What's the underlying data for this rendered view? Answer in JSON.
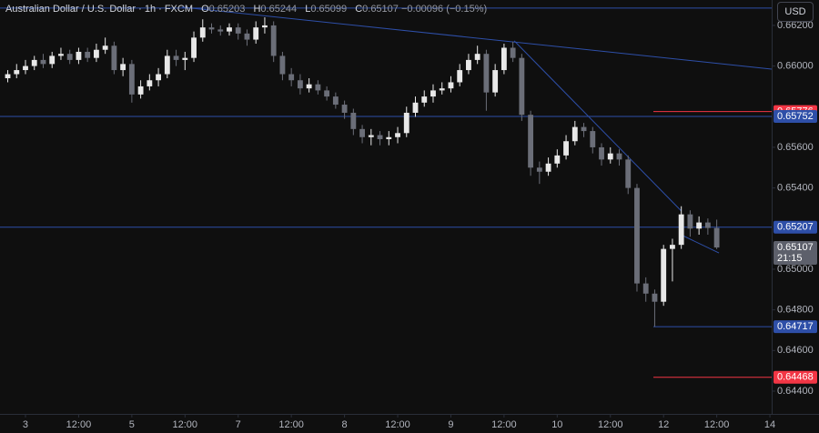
{
  "header": {
    "symbol": "Australian Dollar / U.S. Dollar · 1h · FXCM",
    "open_key": "O",
    "open": "0.65203",
    "high_key": "H",
    "high": "0.65244",
    "low_key": "L",
    "low": "0.65099",
    "close_key": "C",
    "close": "0.65107",
    "change": "−0.00096 (−0.15%)"
  },
  "currency_button": "USD",
  "chart_data": {
    "type": "candlestick",
    "xlim": [
      -5.75,
      168.4
    ],
    "ylim": [
      0.64288,
      0.66325
    ],
    "xticks": [
      {
        "value": 0,
        "label": "3"
      },
      {
        "value": 12,
        "label": "12:00"
      },
      {
        "value": 24,
        "label": "5"
      },
      {
        "value": 36,
        "label": "12:00"
      },
      {
        "value": 48,
        "label": "7"
      },
      {
        "value": 60,
        "label": "12:00"
      },
      {
        "value": 72,
        "label": "8"
      },
      {
        "value": 84,
        "label": "12:00"
      },
      {
        "value": 96,
        "label": "9"
      },
      {
        "value": 108,
        "label": "12:00"
      },
      {
        "value": 120,
        "label": "10"
      },
      {
        "value": 132,
        "label": "12:00"
      },
      {
        "value": 144,
        "label": "12"
      },
      {
        "value": 156,
        "label": "12:00"
      },
      {
        "value": 168,
        "label": "14"
      }
    ],
    "yticks": [
      {
        "value": 0.662,
        "label": "0.66200"
      },
      {
        "value": 0.66,
        "label": "0.66000"
      },
      {
        "value": 0.656,
        "label": "0.65600"
      },
      {
        "value": 0.654,
        "label": "0.65400"
      },
      {
        "value": 0.65,
        "label": "0.65000"
      },
      {
        "value": 0.648,
        "label": "0.64800"
      },
      {
        "value": 0.646,
        "label": "0.64600"
      },
      {
        "value": 0.644,
        "label": "0.64400"
      }
    ],
    "up_color": "#e8e8e8",
    "down_color": "#6b6e78",
    "x": [
      -4,
      -2,
      0,
      2,
      4,
      6,
      8,
      10,
      12,
      14,
      16,
      18,
      20,
      22,
      24,
      26,
      28,
      30,
      32,
      34,
      36,
      38,
      40,
      42,
      44,
      46,
      48,
      50,
      52,
      54,
      56,
      58,
      60,
      62,
      64,
      66,
      68,
      70,
      72,
      74,
      76,
      78,
      80,
      82,
      84,
      86,
      88,
      90,
      92,
      94,
      96,
      98,
      100,
      102,
      104,
      106,
      108,
      110,
      112,
      114,
      116,
      118,
      120,
      122,
      124,
      126,
      128,
      130,
      132,
      134,
      136,
      138,
      140,
      142,
      144,
      146,
      148,
      150,
      152,
      154,
      156
    ],
    "open": [
      0.6594,
      0.6596,
      0.6598,
      0.66,
      0.6603,
      0.6601,
      0.6605,
      0.6606,
      0.6603,
      0.6607,
      0.6604,
      0.6608,
      0.661,
      0.6598,
      0.6601,
      0.6586,
      0.659,
      0.6593,
      0.6596,
      0.6605,
      0.6603,
      0.6604,
      0.6614,
      0.6619,
      0.6618,
      0.6617,
      0.6619,
      0.6616,
      0.6613,
      0.6619,
      0.662,
      0.6605,
      0.6596,
      0.6593,
      0.6589,
      0.6591,
      0.6588,
      0.6585,
      0.6581,
      0.6577,
      0.6569,
      0.6565,
      0.6566,
      0.6564,
      0.6565,
      0.6567,
      0.6577,
      0.6582,
      0.6585,
      0.6588,
      0.6589,
      0.6592,
      0.6598,
      0.6603,
      0.6606,
      0.6587,
      0.6598,
      0.6609,
      0.6604,
      0.6576,
      0.655,
      0.6548,
      0.6552,
      0.6556,
      0.6563,
      0.657,
      0.6568,
      0.656,
      0.6554,
      0.6557,
      0.6554,
      0.654,
      0.6493,
      0.6488,
      0.6484,
      0.651,
      0.6512,
      0.6527,
      0.652,
      0.6523,
      0.65203
    ],
    "high": [
      0.6598,
      0.6601,
      0.6603,
      0.6605,
      0.6606,
      0.6607,
      0.6609,
      0.6608,
      0.6609,
      0.6609,
      0.6611,
      0.6614,
      0.6612,
      0.6604,
      0.6603,
      0.6593,
      0.6596,
      0.6599,
      0.6608,
      0.6608,
      0.6607,
      0.6617,
      0.6623,
      0.6621,
      0.662,
      0.6621,
      0.6621,
      0.6618,
      0.6622,
      0.6624,
      0.6622,
      0.6607,
      0.6599,
      0.6596,
      0.6594,
      0.6593,
      0.659,
      0.6587,
      0.6583,
      0.6579,
      0.6571,
      0.6569,
      0.6568,
      0.6568,
      0.657,
      0.658,
      0.6585,
      0.6588,
      0.6591,
      0.6592,
      0.6595,
      0.6601,
      0.6606,
      0.661,
      0.6608,
      0.6601,
      0.6611,
      0.6612,
      0.6606,
      0.6578,
      0.6553,
      0.6555,
      0.6559,
      0.6566,
      0.6573,
      0.6572,
      0.657,
      0.6562,
      0.656,
      0.6559,
      0.6556,
      0.6542,
      0.6496,
      0.649,
      0.6512,
      0.6515,
      0.6531,
      0.6529,
      0.6526,
      0.6525,
      0.65244
    ],
    "low": [
      0.6592,
      0.6594,
      0.6596,
      0.6598,
      0.6599,
      0.6599,
      0.6603,
      0.6601,
      0.6601,
      0.6602,
      0.6602,
      0.6606,
      0.6596,
      0.6595,
      0.6582,
      0.6584,
      0.6588,
      0.659,
      0.6594,
      0.66,
      0.6598,
      0.6602,
      0.6612,
      0.6616,
      0.6615,
      0.6615,
      0.6613,
      0.661,
      0.6611,
      0.6616,
      0.6602,
      0.6593,
      0.659,
      0.6586,
      0.6587,
      0.6586,
      0.6583,
      0.6579,
      0.6574,
      0.6566,
      0.6562,
      0.6561,
      0.6561,
      0.6561,
      0.6562,
      0.6565,
      0.6575,
      0.658,
      0.6582,
      0.6586,
      0.6587,
      0.659,
      0.6596,
      0.6601,
      0.6578,
      0.6585,
      0.6596,
      0.6602,
      0.6573,
      0.6546,
      0.6542,
      0.6546,
      0.655,
      0.6554,
      0.6561,
      0.6565,
      0.6557,
      0.6551,
      0.6552,
      0.6551,
      0.6537,
      0.6489,
      0.6484,
      0.64717,
      0.6482,
      0.6494,
      0.651,
      0.6516,
      0.6517,
      0.6517,
      0.65099
    ],
    "close": [
      0.6596,
      0.6598,
      0.66,
      0.6603,
      0.6601,
      0.6605,
      0.6606,
      0.6603,
      0.6607,
      0.6604,
      0.6608,
      0.661,
      0.6598,
      0.6601,
      0.6586,
      0.659,
      0.6593,
      0.6596,
      0.6605,
      0.6603,
      0.6604,
      0.6614,
      0.6619,
      0.6618,
      0.6617,
      0.6619,
      0.6616,
      0.6613,
      0.6619,
      0.662,
      0.6605,
      0.6596,
      0.6593,
      0.6589,
      0.6591,
      0.6588,
      0.6585,
      0.6581,
      0.6577,
      0.6569,
      0.6565,
      0.6566,
      0.6564,
      0.6565,
      0.6567,
      0.6577,
      0.6582,
      0.6585,
      0.6588,
      0.6589,
      0.6592,
      0.6598,
      0.6603,
      0.6606,
      0.6587,
      0.6598,
      0.6609,
      0.6604,
      0.6576,
      0.655,
      0.6548,
      0.6552,
      0.6556,
      0.6563,
      0.657,
      0.6568,
      0.656,
      0.6554,
      0.6557,
      0.6554,
      0.654,
      0.6493,
      0.6488,
      0.6484,
      0.651,
      0.6512,
      0.6527,
      0.652,
      0.6523,
      0.65203,
      0.65107
    ],
    "levels": [
      {
        "value": 0.66285,
        "color": "#2e4fa8"
      },
      {
        "value": 0.65776,
        "color": "#f23645",
        "start": 141.7,
        "tag": true
      },
      {
        "value": 0.65752,
        "color": "#2e4fa8",
        "tag": true
      },
      {
        "value": 0.65207,
        "color": "#2e4fa8",
        "tag": true
      },
      {
        "value": 0.64717,
        "color": "#2e4fa8",
        "start": 141.7,
        "tag": true
      },
      {
        "value": 0.64468,
        "color": "#f23645",
        "start": 141.7,
        "tag": true
      }
    ],
    "trendlines": [
      {
        "x": [
          35.3,
          168.4
        ],
        "y": [
          0.6629,
          0.65985
        ],
        "color": "#2e4fa8"
      },
      {
        "x": [
          110.3,
          148
        ],
        "y": [
          0.66124,
          0.65287
        ],
        "color": "#2e4fa8"
      },
      {
        "x": [
          147.9,
          156.5
        ],
        "y": [
          0.6517,
          0.6508
        ],
        "color": "#2e4fa8"
      }
    ],
    "last_price": {
      "value": 0.65107,
      "countdown": "21:15",
      "color": "#5d606b"
    }
  }
}
